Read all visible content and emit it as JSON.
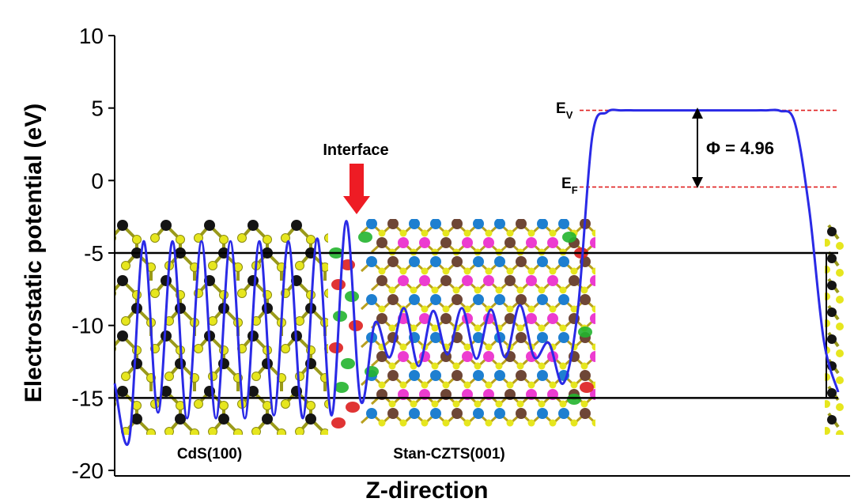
{
  "chart_data": {
    "type": "line",
    "xlabel": "Z-direction",
    "ylabel": "Electrostatic potential (eV)",
    "ylim": [
      -20,
      10
    ],
    "y_ticks": [
      "10",
      "5",
      "0",
      "-5",
      "-10",
      "-15",
      "-20"
    ],
    "series": [
      {
        "x": [
          0,
          2,
          4,
          6,
          8,
          10,
          12,
          14,
          16,
          18,
          20,
          22,
          24,
          26,
          28,
          30,
          32,
          34,
          36,
          38,
          40,
          42,
          44,
          46,
          48,
          50,
          52,
          54,
          56,
          58,
          60,
          62,
          64,
          66,
          68,
          70,
          72,
          74,
          76,
          78,
          80,
          82,
          84,
          86,
          88,
          90,
          92,
          94,
          96,
          98,
          100
        ],
        "y": [
          -14.0,
          -17.9,
          -4.2,
          -16.0,
          -4.2,
          -16.4,
          -4.2,
          -16.4,
          -4.2,
          -16.4,
          -4.2,
          -16.2,
          -4.2,
          -16.4,
          -4.0,
          -16.2,
          -2.8,
          -15.2,
          -9.8,
          -12.2,
          -8.8,
          -12.8,
          -9.0,
          -12.0,
          -8.8,
          -12.3,
          -8.9,
          -12.2,
          -8.6,
          -12.2,
          -11.2,
          -14.0,
          -9.0,
          3.0,
          4.7,
          4.84,
          4.84,
          4.84,
          4.84,
          4.84,
          4.84,
          4.84,
          4.84,
          4.84,
          4.84,
          4.84,
          4.8,
          4.0,
          -2.0,
          -11.0,
          -14.6
        ],
        "color": "#2a2ae6"
      }
    ],
    "hlines": [
      {
        "y": -5,
        "color": "#000000",
        "style": "solid"
      },
      {
        "y": -15,
        "color": "#000000",
        "style": "solid"
      },
      {
        "y": 4.84,
        "color": "#e02020",
        "style": "dashed"
      },
      {
        "y": -0.45,
        "color": "#e02020",
        "style": "dashed"
      }
    ],
    "annotations": {
      "interface": "Interface",
      "cds": "CdS(100)",
      "czts": "Stan-CZTS(001)",
      "ev_main": "E",
      "ev_sub": "V",
      "ef_main": "E",
      "ef_sub": "F",
      "phi": "Φ = 4.96"
    },
    "colors": {
      "curve": "#2a2ae6",
      "arrow": "#ee1c24",
      "dashed": "#e02020",
      "sulfur": "#e6e61e",
      "cadmium": "#141414",
      "copper": "#1e7fd0",
      "zinc": "#ec3cd0",
      "tin": "#6e4636",
      "density_red": "#dd1e1e",
      "density_green": "#22b42e"
    }
  }
}
